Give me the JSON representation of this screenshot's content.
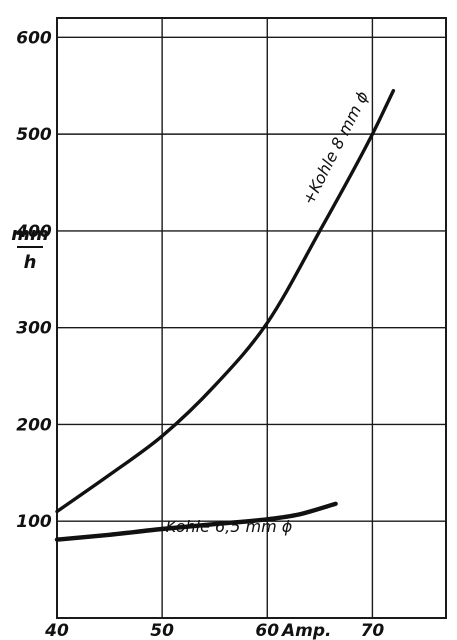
{
  "chart_data": {
    "type": "line",
    "title": "",
    "xlabel": "Amp.",
    "ylabel_top": "mm",
    "ylabel_bottom": "h",
    "xlim": [
      40,
      77
    ],
    "ylim": [
      0,
      620
    ],
    "grid": true,
    "x_ticks": [
      40,
      50,
      60,
      70
    ],
    "x_tick_labels": [
      "40",
      "50",
      "60",
      "70"
    ],
    "y_ticks": [
      100,
      200,
      300,
      400,
      500,
      600
    ],
    "y_tick_labels": [
      "100",
      "200",
      "300",
      "400",
      "500",
      "600"
    ],
    "colors": {
      "line": "#111111",
      "grid": "#1a1a1a",
      "background": "#ffffff"
    },
    "series": [
      {
        "name": "+Kohle 8 mm ϕ",
        "label_text": "+Kohle 8 mm ϕ",
        "x": [
          40,
          45,
          50,
          55,
          60,
          65,
          70,
          72
        ],
        "y": [
          110,
          148,
          188,
          240,
          305,
          400,
          500,
          545
        ]
      },
      {
        "name": "-Kohle 6,5 mm ϕ",
        "label_text": "-Kohle 6,5 mm ϕ",
        "x": [
          40,
          45,
          50,
          55,
          60,
          63,
          66.5
        ],
        "y": [
          81,
          86,
          92,
          97,
          102,
          107,
          118
        ]
      }
    ]
  }
}
